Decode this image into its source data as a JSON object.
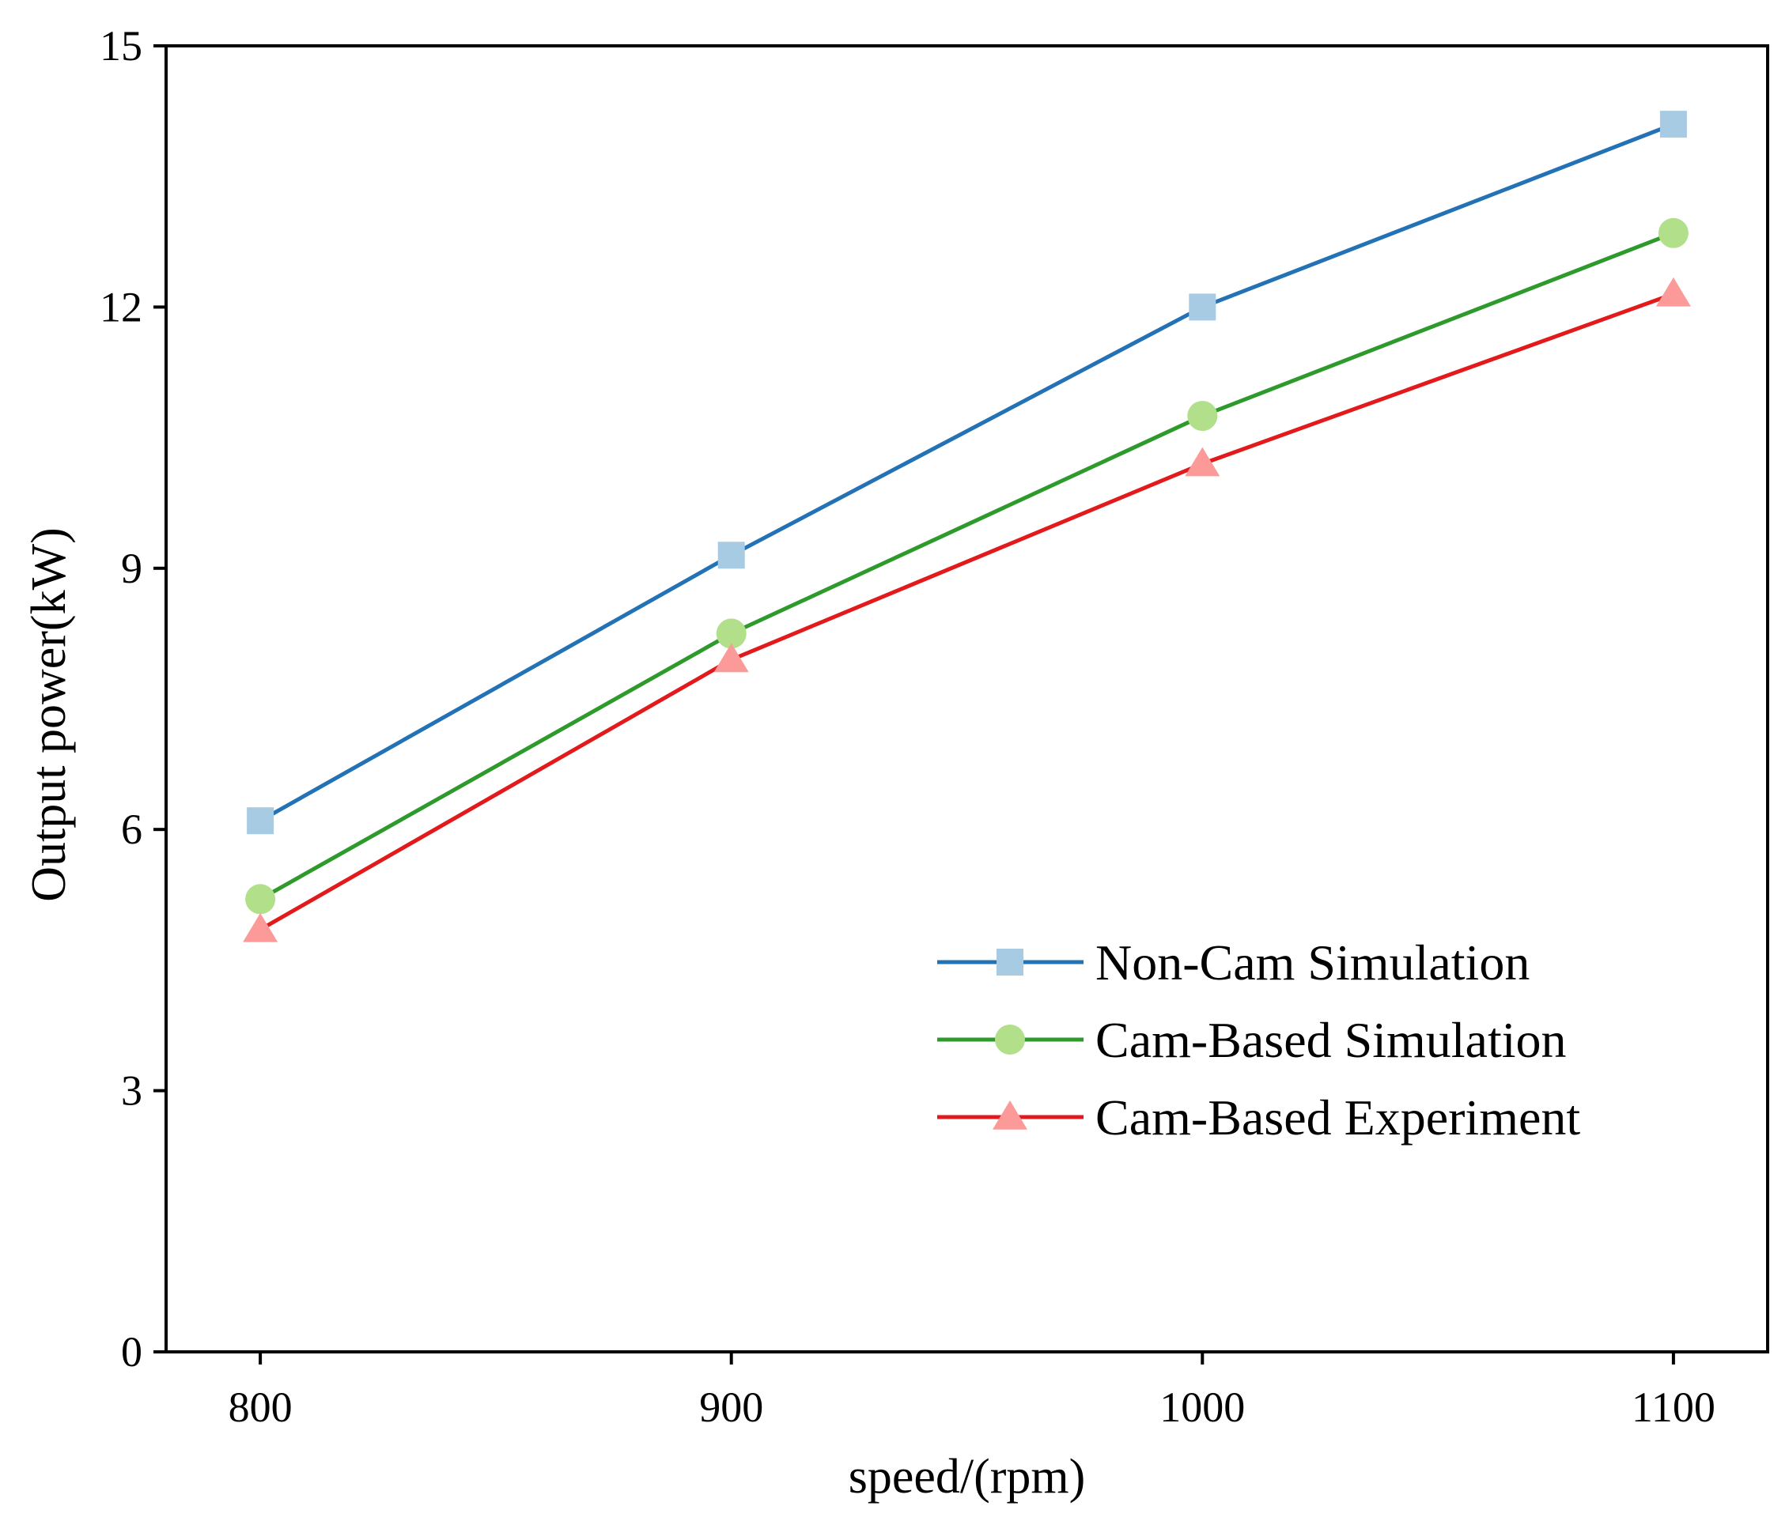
{
  "chart_data": {
    "type": "line",
    "title": "",
    "xlabel": "speed/(rpm)",
    "ylabel": "Output power(kW)",
    "x": [
      800,
      900,
      1000,
      1100
    ],
    "x_tick_labels": [
      "800",
      "900",
      "1000",
      "1100"
    ],
    "xlim": [
      780,
      1120
    ],
    "ylim": [
      0,
      15
    ],
    "y_ticks": [
      0,
      3,
      6,
      9,
      12,
      15
    ],
    "y_tick_labels": [
      "0",
      "3",
      "6",
      "9",
      "12",
      "15"
    ],
    "grid": false,
    "legend_position": "bottom-right",
    "series": [
      {
        "name": "Non-Cam Simulation",
        "values": [
          6.1,
          9.15,
          12.0,
          14.1
        ],
        "line_color": "#2272b5",
        "marker": "square",
        "marker_color": "#a6cbe3"
      },
      {
        "name": "Cam-Based Simulation",
        "values": [
          5.2,
          8.25,
          10.75,
          12.85
        ],
        "line_color": "#2e9a2c",
        "marker": "circle",
        "marker_color": "#b2df8a"
      },
      {
        "name": "Cam-Based Experiment",
        "values": [
          4.85,
          7.95,
          10.2,
          12.15
        ],
        "line_color": "#e31a1c",
        "marker": "triangle",
        "marker_color": "#fb9a99"
      }
    ]
  }
}
